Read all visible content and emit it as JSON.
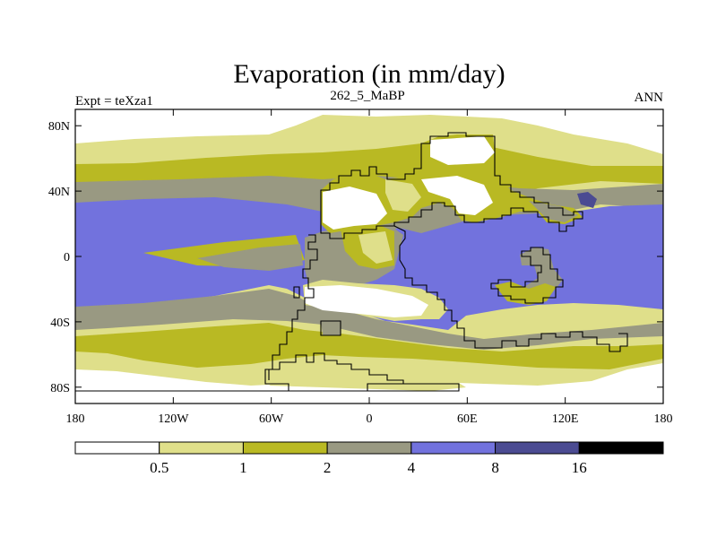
{
  "title": "Evaporation (in mm/day)",
  "left_label": "Expt = teXza1",
  "center_label": "262_5_MaBP",
  "right_label": "ANN",
  "y_ticks": [
    {
      "lat": 80,
      "label": "80N"
    },
    {
      "lat": 40,
      "label": "40N"
    },
    {
      "lat": 0,
      "label": "0"
    },
    {
      "lat": -40,
      "label": "40S"
    },
    {
      "lat": -80,
      "label": "80S"
    }
  ],
  "x_ticks": [
    {
      "lon": -180,
      "label": "180"
    },
    {
      "lon": -120,
      "label": "120W"
    },
    {
      "lon": -60,
      "label": "60W"
    },
    {
      "lon": 0,
      "label": "0"
    },
    {
      "lon": 60,
      "label": "60E"
    },
    {
      "lon": 120,
      "label": "120E"
    },
    {
      "lon": 180,
      "label": "180"
    }
  ],
  "colors": {
    "c0": "#ffffff",
    "c1": "#dfdf8a",
    "c2": "#b9b923",
    "c3": "#999982",
    "c4": "#7272dd",
    "c5": "#4b4b92",
    "c6": "#000000"
  },
  "colorbar": {
    "boxes": [
      "#ffffff",
      "#dfdf8a",
      "#b9b923",
      "#999982",
      "#7272dd",
      "#4b4b92",
      "#000000"
    ],
    "labels": [
      "0.5",
      "1",
      "2",
      "4",
      "8",
      "16"
    ]
  }
}
